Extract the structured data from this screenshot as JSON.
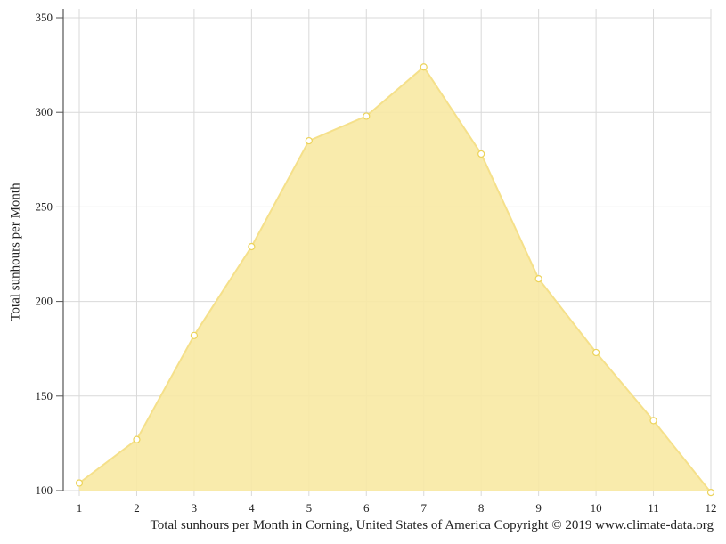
{
  "chart_data": {
    "type": "area",
    "x": [
      1,
      2,
      3,
      4,
      5,
      6,
      7,
      8,
      9,
      10,
      11,
      12
    ],
    "series": [
      {
        "values": [
          104,
          127,
          182,
          229,
          285,
          298,
          324,
          278,
          212,
          173,
          137,
          99
        ]
      }
    ],
    "ylabel": "Total sunhours per Month",
    "caption": "Total sunhours per Month in Corning, United States of America Copyright © 2019 www.climate-data.org",
    "xlim": [
      1,
      12
    ],
    "ylim": [
      100,
      350
    ],
    "yticks": [
      100,
      150,
      200,
      250,
      300,
      350
    ],
    "xticks": [
      1,
      2,
      3,
      4,
      5,
      6,
      7,
      8,
      9,
      10,
      11,
      12
    ],
    "grid": true,
    "colors": {
      "fill": "#f8e9a3",
      "line": "#f5e08a",
      "marker": "#ecd35a",
      "grid": "#d9d9d9",
      "axis": "#555555"
    }
  }
}
